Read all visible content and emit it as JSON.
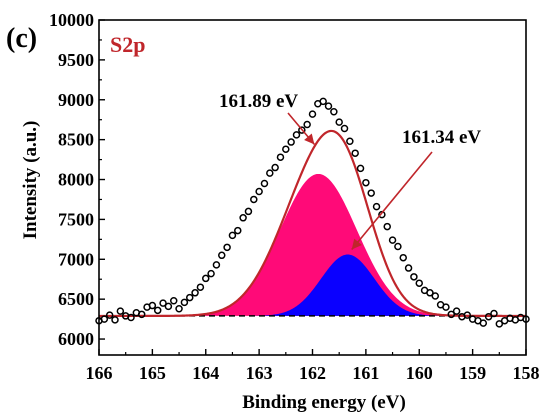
{
  "chart_data": {
    "type": "scatter",
    "panel_label": "(c)",
    "region_label": "S2p",
    "xlabel": "Binding energy (eV)",
    "ylabel": "Intensity (a.u.)",
    "xlim": [
      166,
      158
    ],
    "ylim": [
      5800,
      10000
    ],
    "x_reversed": true,
    "xticks": [
      166,
      165,
      164,
      163,
      162,
      161,
      160,
      159,
      158
    ],
    "yticks": [
      6000,
      6500,
      7000,
      7500,
      8000,
      8500,
      9000,
      9500,
      10000
    ],
    "baseline": 6290,
    "colors": {
      "envelope": "#c0262b",
      "peak1": "#ff0a78",
      "peak2": "#0a00ff",
      "markers": "#000000",
      "baseline": "#000000",
      "arrows": "#c0262b"
    },
    "peaks": [
      {
        "center": 161.89,
        "height": 1780,
        "sigma": 0.72
      },
      {
        "center": 161.34,
        "height": 770,
        "sigma": 0.5
      }
    ],
    "annotations": [
      {
        "text": "161.89 eV",
        "x": 161.89
      },
      {
        "text": "161.34 eV",
        "x": 161.34
      }
    ],
    "data_points": {
      "x": [
        166.0,
        165.9,
        165.8,
        165.7,
        165.6,
        165.5,
        165.4,
        165.3,
        165.2,
        165.1,
        165.0,
        164.9,
        164.8,
        164.7,
        164.6,
        164.5,
        164.4,
        164.3,
        164.2,
        164.1,
        164.0,
        163.9,
        163.8,
        163.7,
        163.6,
        163.5,
        163.4,
        163.3,
        163.2,
        163.1,
        163.0,
        162.9,
        162.8,
        162.7,
        162.6,
        162.5,
        162.4,
        162.3,
        162.2,
        162.1,
        162.0,
        161.9,
        161.8,
        161.7,
        161.6,
        161.5,
        161.4,
        161.3,
        161.2,
        161.1,
        161.0,
        160.9,
        160.8,
        160.7,
        160.6,
        160.5,
        160.4,
        160.3,
        160.2,
        160.1,
        160.0,
        159.9,
        159.8,
        159.7,
        159.6,
        159.5,
        159.4,
        159.3,
        159.2,
        159.1,
        159.0,
        158.9,
        158.8,
        158.7,
        158.6,
        158.5,
        158.4,
        158.3,
        158.2,
        158.1,
        158.0
      ],
      "y": [
        6230,
        6250,
        6300,
        6240,
        6350,
        6290,
        6270,
        6330,
        6310,
        6400,
        6420,
        6360,
        6450,
        6410,
        6480,
        6380,
        6460,
        6520,
        6580,
        6650,
        6760,
        6820,
        6930,
        7050,
        7150,
        7300,
        7360,
        7520,
        7600,
        7750,
        7850,
        7950,
        8080,
        8150,
        8280,
        8380,
        8470,
        8560,
        8620,
        8690,
        8820,
        8950,
        8980,
        8920,
        8850,
        8720,
        8640,
        8480,
        8330,
        8140,
        7960,
        7830,
        7660,
        7560,
        7410,
        7240,
        7160,
        7020,
        6890,
        6780,
        6700,
        6610,
        6580,
        6540,
        6430,
        6400,
        6310,
        6350,
        6280,
        6300,
        6250,
        6230,
        6200,
        6280,
        6320,
        6190,
        6230,
        6260,
        6240,
        6270,
        6250
      ]
    }
  }
}
